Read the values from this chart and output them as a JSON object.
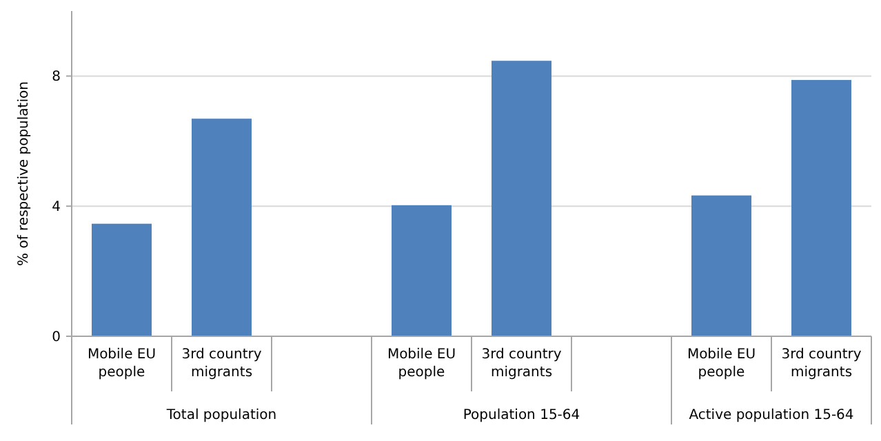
{
  "chart_data": {
    "type": "bar",
    "ylabel": "% of respective population",
    "categories": [
      "Mobile EU people",
      "3rd country migrants",
      null,
      "Mobile EU people",
      "3rd country migrants",
      null,
      "Mobile EU people",
      "3rd country migrants"
    ],
    "values": [
      3.46,
      6.69,
      null,
      4.03,
      8.47,
      null,
      4.33,
      7.88
    ],
    "color": "#4f81bd",
    "ylim": [
      0,
      10
    ],
    "yticks": [
      0,
      4,
      8
    ],
    "grid": "y",
    "annotations": [
      "Total population",
      "Population 15-64",
      "Active population 15-64"
    ]
  }
}
